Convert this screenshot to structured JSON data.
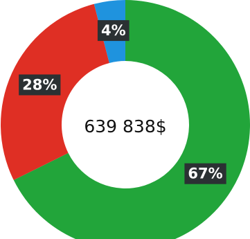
{
  "chart_data": {
    "type": "pie",
    "center_label": "639 838$",
    "slices": [
      {
        "value": 67,
        "label": "67%",
        "color": "#22a53a"
      },
      {
        "value": 28,
        "label": "28%",
        "color": "#df2f24"
      },
      {
        "value": 4,
        "label": "4%",
        "color": "#1f93de"
      }
    ]
  }
}
